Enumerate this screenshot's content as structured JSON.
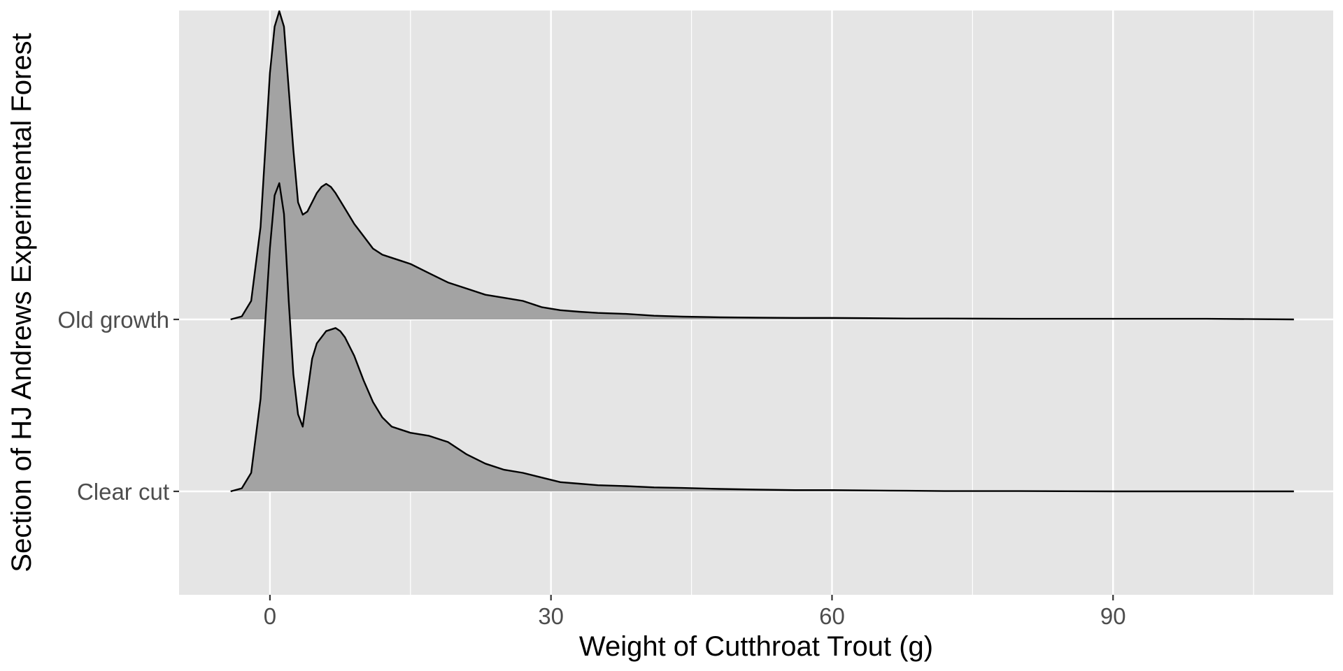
{
  "chart_data": {
    "type": "ridgeline",
    "xlabel": "Weight of Cutthroat Trout (g)",
    "ylabel": "Section of HJ Andrews Experimental Forest",
    "xlim": [
      -9.7,
      113.5
    ],
    "x_ticks": [
      0,
      30,
      60,
      90
    ],
    "x_tick_labels": [
      "0",
      "30",
      "60",
      "90"
    ],
    "grid": true,
    "colors": {
      "panel": "#e5e5e5",
      "grid": "#ffffff",
      "fill": "#a3a3a3",
      "line": "#000000"
    },
    "categories": [
      "Clear cut",
      "Old growth"
    ],
    "series": [
      {
        "name": "Clear cut",
        "x": [
          -4.2,
          -3,
          -2,
          -1,
          -0.5,
          0,
          0.5,
          1,
          1.5,
          2,
          2.5,
          3,
          3.5,
          4,
          4.5,
          5,
          6,
          7,
          7.5,
          8,
          9,
          10,
          11,
          12,
          13,
          14,
          15,
          17,
          19,
          21,
          23,
          25,
          27,
          29,
          31,
          33,
          35,
          38,
          41,
          44,
          48,
          52,
          56,
          60,
          64,
          68,
          72,
          80,
          90,
          100,
          109.3
        ],
        "density": [
          0,
          0.01,
          0.06,
          0.3,
          0.55,
          0.79,
          0.96,
          1.0,
          0.9,
          0.62,
          0.38,
          0.25,
          0.21,
          0.32,
          0.43,
          0.48,
          0.52,
          0.53,
          0.52,
          0.5,
          0.44,
          0.36,
          0.29,
          0.24,
          0.21,
          0.2,
          0.19,
          0.18,
          0.16,
          0.12,
          0.09,
          0.07,
          0.06,
          0.045,
          0.03,
          0.025,
          0.02,
          0.017,
          0.013,
          0.011,
          0.008,
          0.006,
          0.004,
          0.004,
          0.003,
          0.002,
          0.001,
          0.001,
          0,
          0,
          0
        ]
      },
      {
        "name": "Old growth",
        "x": [
          -4.2,
          -3,
          -2,
          -1,
          -0.5,
          0,
          0.5,
          1,
          1.5,
          2,
          2.5,
          3,
          3.5,
          4,
          4.5,
          5,
          5.5,
          6,
          6.5,
          7,
          8,
          9,
          10,
          11,
          12,
          13,
          14,
          15,
          17,
          19,
          21,
          23,
          25,
          27,
          29,
          31,
          33,
          35,
          38,
          41,
          44,
          48,
          52,
          56,
          60,
          64,
          68,
          72,
          80,
          90,
          100,
          109.3
        ],
        "density": [
          0,
          0.01,
          0.06,
          0.3,
          0.55,
          0.8,
          0.95,
          1.0,
          0.95,
          0.75,
          0.55,
          0.38,
          0.34,
          0.35,
          0.38,
          0.41,
          0.43,
          0.44,
          0.43,
          0.41,
          0.36,
          0.31,
          0.27,
          0.23,
          0.21,
          0.2,
          0.19,
          0.18,
          0.15,
          0.12,
          0.1,
          0.08,
          0.07,
          0.06,
          0.04,
          0.03,
          0.025,
          0.021,
          0.018,
          0.012,
          0.009,
          0.007,
          0.006,
          0.005,
          0.005,
          0.004,
          0.003,
          0.003,
          0.002,
          0.002,
          0.002,
          0
        ]
      }
    ]
  }
}
